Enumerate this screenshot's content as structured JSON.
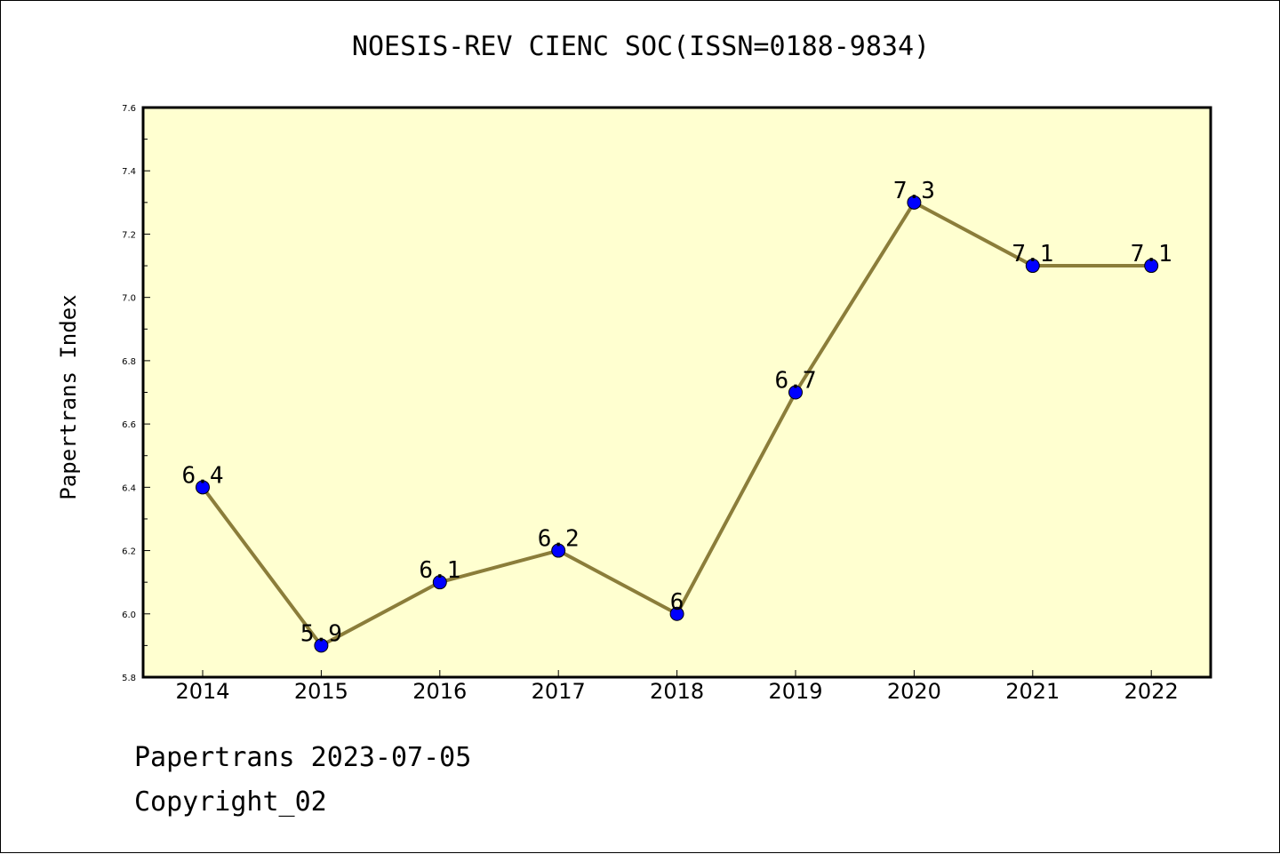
{
  "footer": {
    "line1": "Papertrans 2023-07-05",
    "line2": "Copyright_02"
  },
  "chart_data": {
    "type": "line",
    "title": "NOESIS-REV CIENC SOC(ISSN=0188-9834)",
    "xlabel": "",
    "ylabel": "Papertrans Index",
    "categories": [
      "2014",
      "2015",
      "2016",
      "2017",
      "2018",
      "2019",
      "2020",
      "2021",
      "2022"
    ],
    "values": [
      6.4,
      5.9,
      6.1,
      6.2,
      6.0,
      6.7,
      7.3,
      7.1,
      7.1
    ],
    "data_labels": [
      "6.4",
      "5.9",
      "6.1",
      "6.2",
      "6",
      "6.7",
      "7.3",
      "7.1",
      "7.1"
    ],
    "ylim": [
      5.8,
      7.6
    ],
    "yticks": [
      "5.8",
      "6.0",
      "6.2",
      "6.4",
      "6.6",
      "6.8",
      "7.0",
      "7.2",
      "7.4",
      "7.6"
    ],
    "grid": false,
    "colors": {
      "plot_background": "#ffffd0",
      "line": "#8b7d3a",
      "marker": "#0000ff"
    }
  }
}
